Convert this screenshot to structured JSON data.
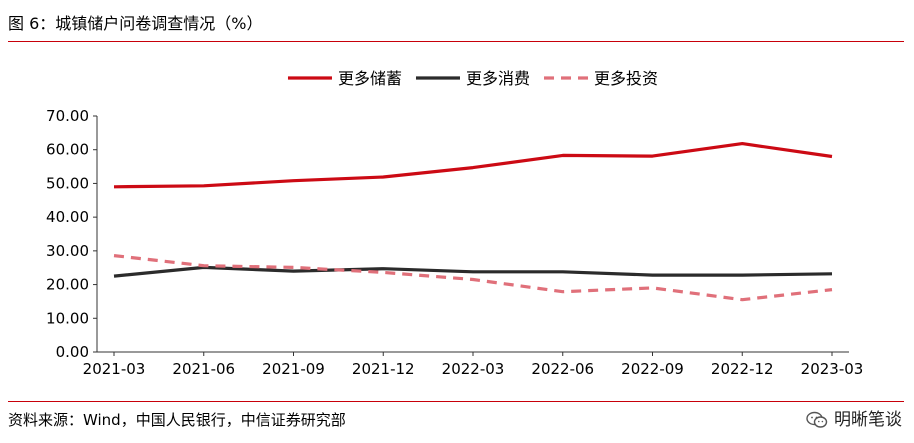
{
  "title": "图 6：城镇储户问卷调查情况（%）",
  "source": "资料来源：Wind，中国人民银行，中信证券研究部",
  "watermark": {
    "text": "明晰笔谈",
    "icon": "wechat-icon"
  },
  "colors": {
    "rule": "#c8000a",
    "save": "#cc0a14",
    "consume": "#2b2b2b",
    "invest": "#e0707a"
  },
  "chart_data": {
    "type": "line",
    "title": "",
    "xlabel": "",
    "ylabel": "",
    "ylim": [
      0,
      70
    ],
    "yticks": [
      "0.00",
      "10.00",
      "20.00",
      "30.00",
      "40.00",
      "50.00",
      "60.00",
      "70.00"
    ],
    "categories": [
      "2021-03",
      "2021-06",
      "2021-09",
      "2021-12",
      "2022-03",
      "2022-06",
      "2022-09",
      "2022-12",
      "2023-03"
    ],
    "grid": false,
    "legend_position": "top-center",
    "series": [
      {
        "name": "更多储蓄",
        "style": "solid",
        "color": "#cc0a14",
        "values": [
          49.0,
          49.3,
          50.8,
          51.9,
          54.7,
          58.3,
          58.1,
          61.8,
          58.0
        ]
      },
      {
        "name": "更多消费",
        "style": "solid",
        "color": "#2b2b2b",
        "values": [
          22.5,
          25.1,
          24.0,
          24.7,
          23.8,
          23.8,
          22.8,
          22.8,
          23.2
        ]
      },
      {
        "name": "更多投资",
        "style": "dashed",
        "color": "#e0707a",
        "values": [
          28.6,
          25.6,
          25.1,
          23.6,
          21.5,
          17.9,
          19.0,
          15.5,
          18.5
        ]
      }
    ]
  }
}
